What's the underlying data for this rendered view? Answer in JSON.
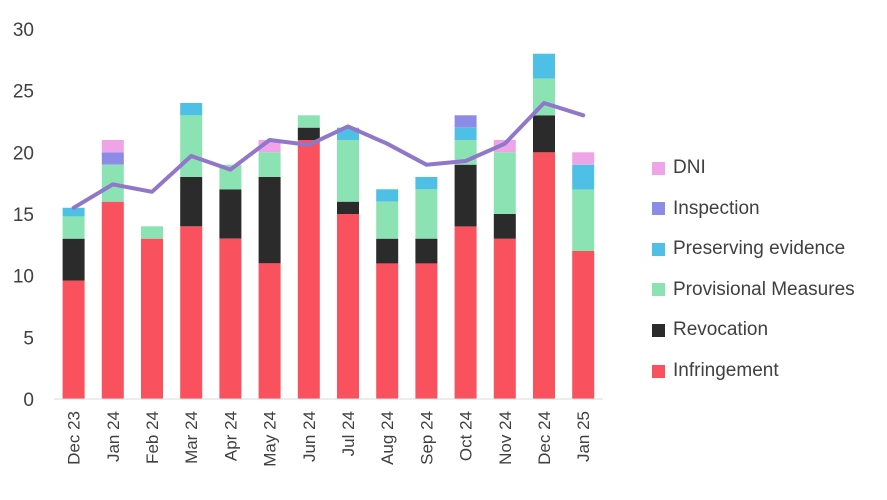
{
  "chart_data": {
    "type": "bar",
    "stacked": true,
    "categories": [
      "Dec 23",
      "Jan 24",
      "Feb 24",
      "Mar 24",
      "Apr 24",
      "May 24",
      "Jun 24",
      "Jul 24",
      "Aug 24",
      "Sep 24",
      "Oct 24",
      "Nov 24",
      "Dec 24",
      "Jan 25"
    ],
    "series": [
      {
        "name": "Infringement",
        "color": "#f9515e",
        "values": [
          9.6,
          16,
          13,
          14,
          13,
          11,
          21,
          15,
          11,
          11,
          14,
          13,
          20,
          12
        ]
      },
      {
        "name": "Revocation",
        "color": "#2b2b2b",
        "values": [
          3.4,
          0,
          0,
          4,
          4,
          7,
          1,
          1,
          2,
          2,
          5,
          2,
          3,
          0
        ]
      },
      {
        "name": "Provisional Measures",
        "color": "#8be3b3",
        "values": [
          1.8,
          3,
          1,
          5,
          2,
          2,
          1,
          5,
          3,
          4,
          2,
          5,
          3,
          5
        ]
      },
      {
        "name": "Preserving evidence",
        "color": "#4ec0e5",
        "values": [
          0.7,
          0,
          0,
          1,
          0,
          0,
          0,
          1,
          1,
          1,
          1,
          0,
          2,
          2
        ]
      },
      {
        "name": "Inspection",
        "color": "#8c8ce6",
        "values": [
          0,
          1,
          0,
          0,
          0,
          0,
          0,
          0,
          0,
          0,
          1,
          0,
          0,
          0
        ]
      },
      {
        "name": "DNI",
        "color": "#efa4e7",
        "values": [
          0,
          1,
          0,
          0,
          0,
          1,
          0,
          0,
          0,
          0,
          0,
          1,
          0,
          1
        ]
      }
    ],
    "line": {
      "color": "#9077c9",
      "values": [
        15.5,
        17.4,
        16.8,
        19.7,
        18.6,
        21.0,
        20.6,
        22.1,
        20.7,
        19.0,
        19.3,
        20.7,
        24.0,
        23.0
      ]
    },
    "ylim": [
      0,
      30
    ],
    "yticks": [
      "0",
      "5",
      "10",
      "15",
      "20",
      "25",
      "30"
    ],
    "xlabel": "",
    "ylabel": "",
    "grid": false,
    "legend_position": "right"
  }
}
